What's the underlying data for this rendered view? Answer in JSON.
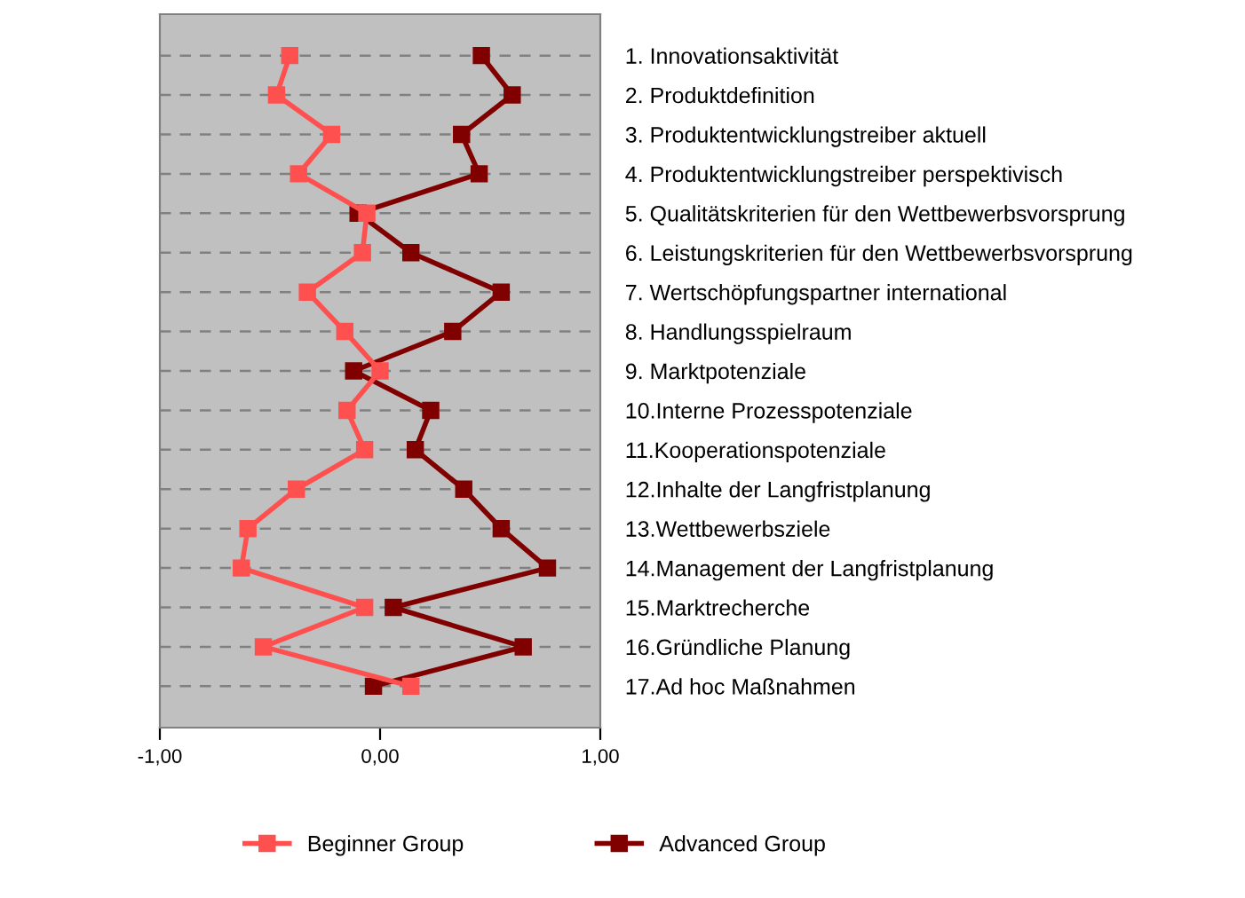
{
  "chart_data": {
    "type": "line",
    "orientation": "horizontal",
    "categories": [
      "1. Innovationsaktivität",
      "2. Produktdefinition",
      "3. Produktentwicklungstreiber aktuell",
      "4. Produktentwicklungstreiber perspektivisch",
      "5. Qualitätskriterien für den Wettbewerbsvorsprung",
      "6. Leistungskriterien für den Wettbewerbsvorsprung",
      "7. Wertschöpfungspartner international",
      "8. Handlungsspielraum",
      "9. Marktpotenziale",
      "10.Interne Prozesspotenziale",
      "11.Kooperationspotenziale",
      "12.Inhalte der Langfristplanung",
      "13.Wettbewerbsziele",
      "14.Management der Langfristplanung",
      "15.Marktrecherche",
      "16.Gründliche Planung",
      "17.Ad hoc Maßnahmen"
    ],
    "series": [
      {
        "name": "Beginner Group",
        "color": "#ff5050",
        "values": [
          -0.41,
          -0.47,
          -0.22,
          -0.37,
          -0.06,
          -0.08,
          -0.33,
          -0.16,
          0.0,
          -0.15,
          -0.07,
          -0.38,
          -0.6,
          -0.63,
          -0.07,
          -0.53,
          0.14
        ]
      },
      {
        "name": "Advanced Group",
        "color": "#800000",
        "values": [
          0.46,
          0.6,
          0.37,
          0.45,
          -0.1,
          0.14,
          0.55,
          0.33,
          -0.12,
          0.23,
          0.16,
          0.38,
          0.55,
          0.76,
          0.06,
          0.65,
          -0.03
        ]
      }
    ],
    "xlim": [
      -1,
      1
    ],
    "xticks": [
      {
        "value": -1,
        "label": "-1,00"
      },
      {
        "value": 0,
        "label": "0,00"
      },
      {
        "value": 1,
        "label": "1,00"
      }
    ],
    "grid": "y",
    "legend": "bottom",
    "marker": "square",
    "line_style": "solid"
  }
}
